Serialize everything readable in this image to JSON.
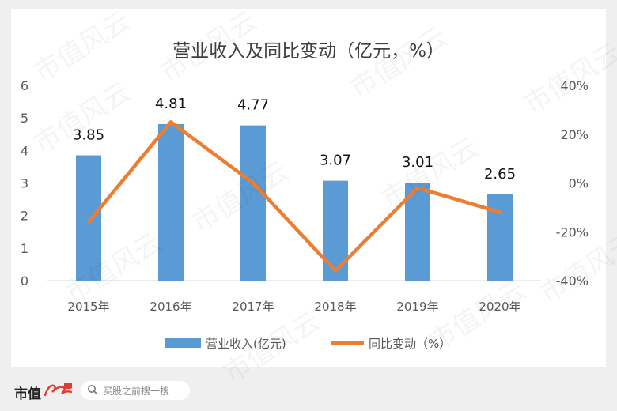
{
  "watermark_text": "市值风云",
  "footer": {
    "brand": "市值",
    "search_placeholder": "买股之前搜一搜"
  },
  "colors": {
    "bar": "#5b9bd5",
    "line": "#ed7d31",
    "axis_text": "#595959",
    "title_text": "#404040"
  },
  "chart_data": {
    "type": "bar",
    "title": "营业收入及同比变动（亿元，%）",
    "categories": [
      "2015年",
      "2016年",
      "2017年",
      "2018年",
      "2019年",
      "2020年"
    ],
    "series": [
      {
        "name": "营业收入(亿元)",
        "type": "bar",
        "axis": "left",
        "values": [
          3.85,
          4.81,
          4.77,
          3.07,
          3.01,
          2.65
        ],
        "data_labels": [
          "3.85",
          "4.81",
          "4.77",
          "3.07",
          "3.01",
          "2.65"
        ]
      },
      {
        "name": "同比变动（%）",
        "type": "line",
        "axis": "right",
        "values": [
          -16,
          25,
          0,
          -36,
          -2,
          -12
        ]
      }
    ],
    "y_left": {
      "min": 0,
      "max": 6,
      "ticks": [
        "0",
        "1",
        "2",
        "3",
        "4",
        "5",
        "6"
      ]
    },
    "y_right": {
      "min": -40,
      "max": 40,
      "ticks": [
        "-40%",
        "-20%",
        "0%",
        "20%",
        "40%"
      ]
    },
    "legend_position": "bottom",
    "grid": false
  }
}
